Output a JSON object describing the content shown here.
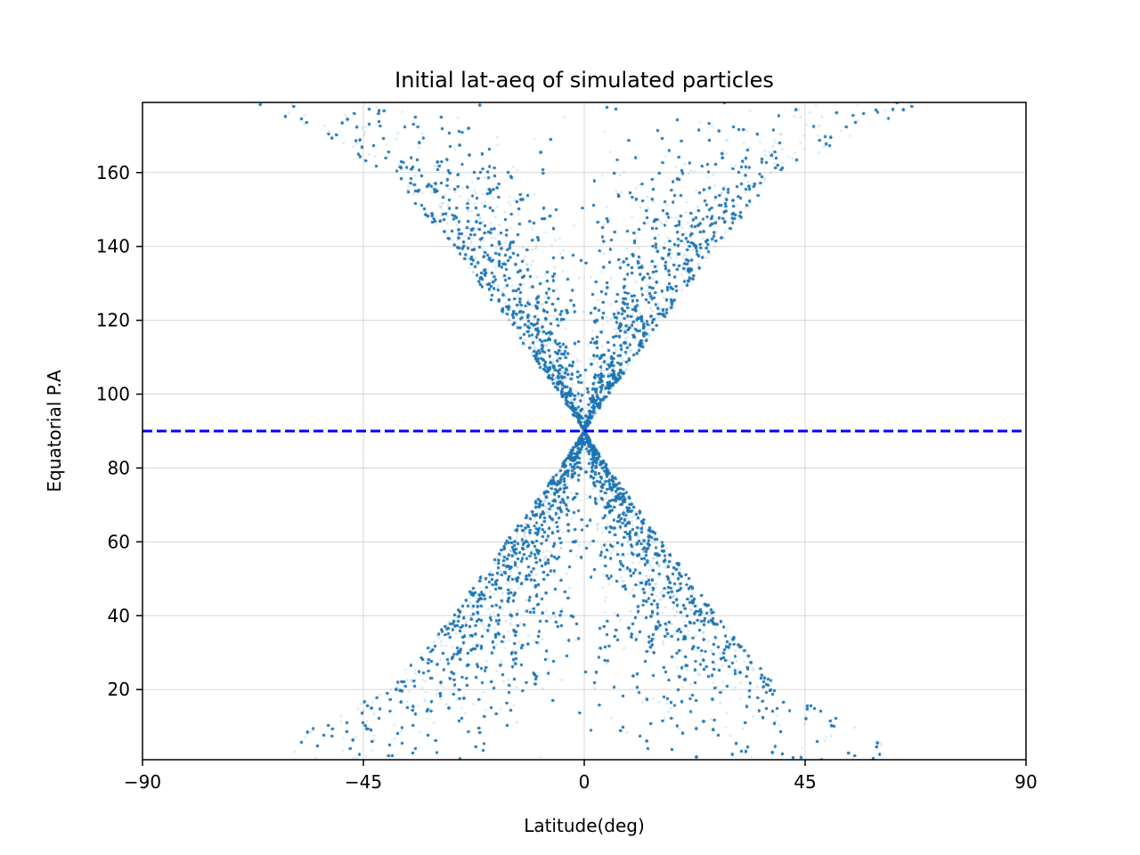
{
  "chart_data": {
    "type": "scatter",
    "title": "Initial lat-aeq of simulated particles",
    "xlabel": "Latitude(deg)",
    "ylabel": "Equatorial P.A",
    "xlim": [
      -90,
      90
    ],
    "ylim": [
      1,
      179
    ],
    "xticks": [
      -90,
      -45,
      0,
      45,
      90
    ],
    "xtick_labels": [
      "−90",
      "−45",
      "0",
      "45",
      "90"
    ],
    "yticks": [
      20,
      40,
      60,
      80,
      100,
      120,
      140,
      160
    ],
    "ytick_labels": [
      "20",
      "40",
      "60",
      "80",
      "100",
      "120",
      "140",
      "160"
    ],
    "grid": true,
    "series": [
      {
        "kind": "scatter",
        "color": "#1f77b4",
        "alpha": 0.2,
        "envelope": {
          "description_points": [
            {
              "equatorial_pa": 2,
              "abs_latitude_max": 67
            },
            {
              "equatorial_pa": 20,
              "abs_latitude_max": 40
            },
            {
              "equatorial_pa": 40,
              "abs_latitude_max": 27
            },
            {
              "equatorial_pa": 60,
              "abs_latitude_max": 16
            },
            {
              "equatorial_pa": 80,
              "abs_latitude_max": 5
            },
            {
              "equatorial_pa": 90,
              "abs_latitude_max": 0
            }
          ],
          "symmetric_about_pa": 90
        }
      },
      {
        "kind": "hline",
        "y": 90,
        "color": "#0000ff",
        "linestyle": "dashed"
      }
    ]
  }
}
